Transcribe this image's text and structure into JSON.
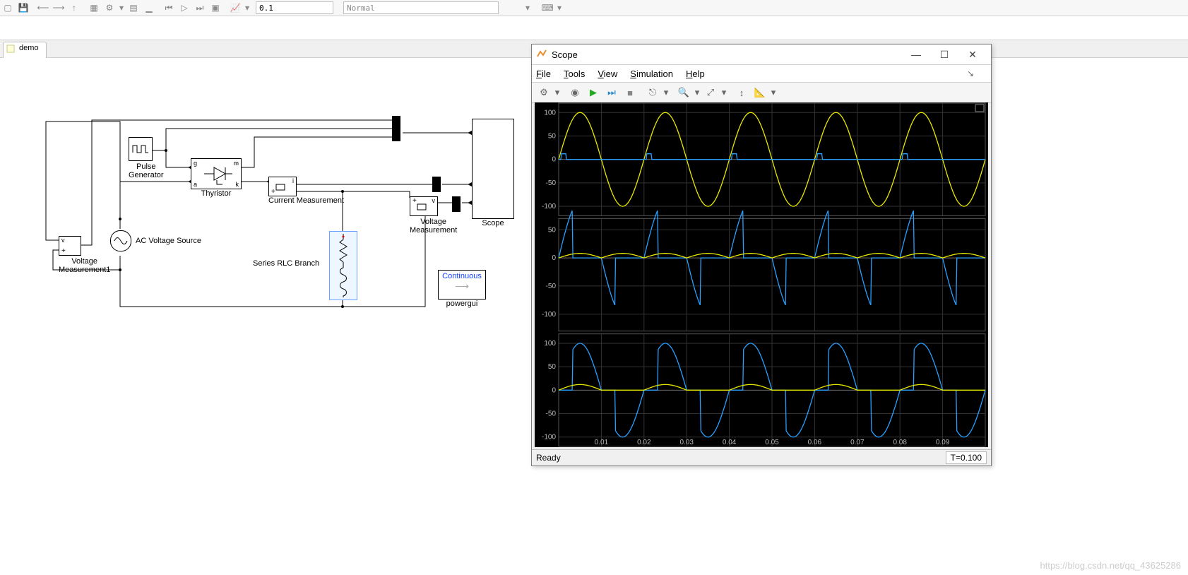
{
  "top_toolbar": {
    "stop_time": "0.1",
    "mode": "Normal"
  },
  "tab": {
    "label": "demo"
  },
  "diagram": {
    "blocks": {
      "pulse_gen": {
        "label": "Pulse\nGenerator"
      },
      "thyristor": {
        "label": "Thyristor",
        "ports": {
          "g": "g",
          "m": "m",
          "a": "a",
          "k": "k"
        }
      },
      "current_meas": {
        "label": "Current Measurement",
        "port": "i"
      },
      "voltage_meas": {
        "label": "Voltage\nMeasurement",
        "port": "v"
      },
      "voltage_meas1": {
        "label": "Voltage\nMeasurement1",
        "port": "v"
      },
      "ac_source": {
        "label": "AC Voltage Source"
      },
      "rlc": {
        "label": "Series RLC Branch"
      },
      "powergui": {
        "label": "powergui",
        "mode": "Continuous",
        "mode_color": "#1040ff"
      },
      "scope": {
        "label": "Scope"
      }
    }
  },
  "scope_window": {
    "title": "Scope",
    "menus": [
      "File",
      "Tools",
      "View",
      "Simulation",
      "Help"
    ],
    "status": "Ready",
    "time": "T=0.100",
    "x": {
      "min": 0,
      "max": 0.1,
      "ticks": [
        0.01,
        0.02,
        0.03,
        0.04,
        0.05,
        0.06,
        0.07,
        0.08,
        0.09
      ],
      "tick_labels": [
        "0.01",
        "0.02",
        "0.03",
        "0.04",
        "0.05",
        "0.06",
        "0.07",
        "0.08",
        "0.09"
      ]
    },
    "colors": {
      "bg": "#000000",
      "grid": "#333333",
      "axis": "#666666",
      "series_yellow": "#e8e800",
      "series_blue": "#28a0ff",
      "tick_label": "#bbbbbb"
    },
    "line_width": 1.3,
    "subplots": [
      {
        "ylim": [
          -120,
          120
        ],
        "yticks": [
          -100,
          -50,
          0,
          50,
          100
        ],
        "series": [
          {
            "color_key": "series_yellow",
            "type": "sine",
            "amp": 100,
            "freq_hz": 50,
            "phase": 0,
            "offset": 0
          },
          {
            "color_key": "series_blue",
            "type": "pulse",
            "period": 0.02,
            "duty": 0.06,
            "high": 12,
            "low": 0,
            "delay": 0.0006
          }
        ]
      },
      {
        "ylim": [
          -130,
          70
        ],
        "yticks": [
          -100,
          -50,
          0,
          50
        ],
        "series": [
          {
            "color_key": "series_blue",
            "type": "thyristor_voltage",
            "amp": 100,
            "freq_hz": 50,
            "alpha_frac": 0.32
          },
          {
            "color_key": "series_yellow",
            "type": "abs_half_scaled",
            "amp": 8,
            "freq_hz": 50
          }
        ]
      },
      {
        "ylim": [
          -120,
          120
        ],
        "yticks": [
          -100,
          -50,
          0,
          50,
          100
        ],
        "series": [
          {
            "color_key": "series_blue",
            "type": "load_voltage",
            "amp": 100,
            "freq_hz": 50,
            "alpha_frac": 0.32
          },
          {
            "color_key": "series_yellow",
            "type": "half_scaled",
            "amp": 12,
            "freq_hz": 50
          }
        ]
      }
    ]
  },
  "watermark": "https://blog.csdn.net/qq_43625286"
}
